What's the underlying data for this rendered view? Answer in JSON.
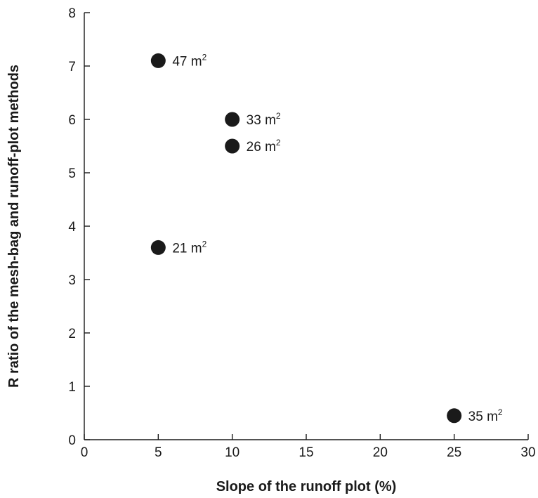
{
  "chart_data": {
    "type": "scatter",
    "title": "",
    "xlabel": "Slope of the runoff plot (%)",
    "ylabel": "R ratio of the mesh-bag and runoff-plot methods",
    "xlim": [
      0,
      30
    ],
    "ylim": [
      0,
      8
    ],
    "x_ticks": [
      0,
      5,
      10,
      15,
      20,
      25,
      30
    ],
    "y_ticks": [
      0,
      1,
      2,
      3,
      4,
      5,
      6,
      7,
      8
    ],
    "grid": false,
    "legend": "none",
    "marker_color": "#1a1a1a",
    "points": [
      {
        "x": 5,
        "y": 7.1,
        "label": "47 m",
        "label_sup": "2"
      },
      {
        "x": 10,
        "y": 6.0,
        "label": "33 m",
        "label_sup": "2"
      },
      {
        "x": 10,
        "y": 5.5,
        "label": "26 m",
        "label_sup": "2"
      },
      {
        "x": 5,
        "y": 3.6,
        "label": "21 m",
        "label_sup": "2"
      },
      {
        "x": 25,
        "y": 0.45,
        "label": "35 m",
        "label_sup": "2"
      }
    ]
  }
}
